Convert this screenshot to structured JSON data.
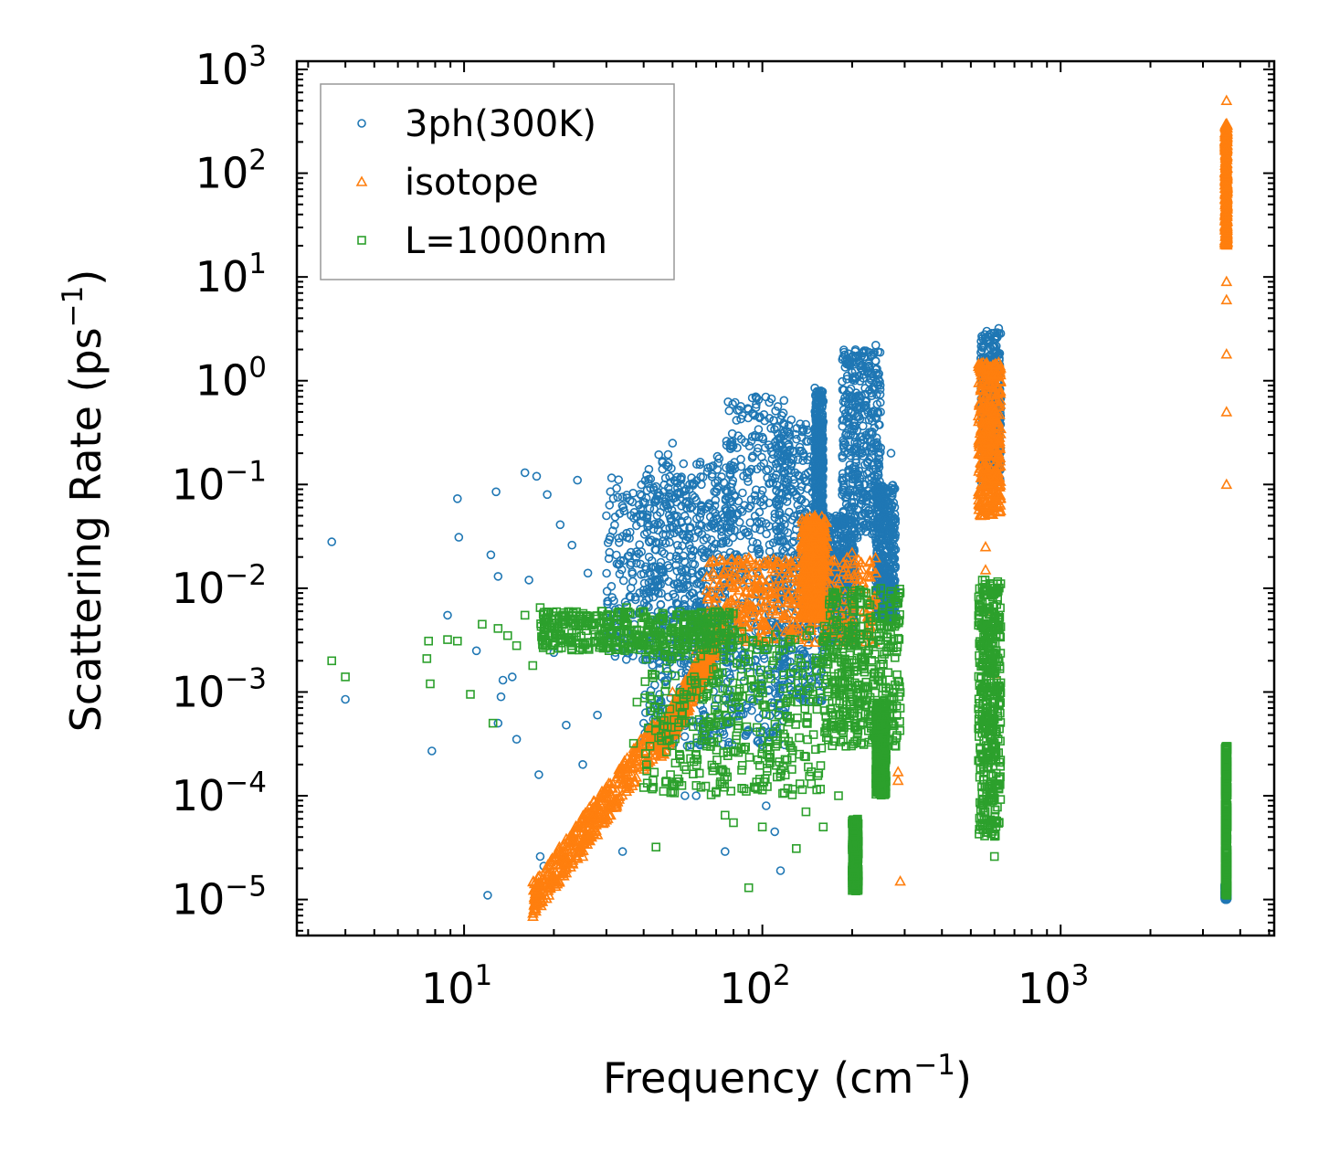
{
  "chart_data": {
    "type": "scatter",
    "title": "",
    "xlabel": "Frequency (cm",
    "xlabel_sup": "−1",
    "xlabel_end": ")",
    "ylabel": "Scattering Rate (ps",
    "ylabel_sup": "−1",
    "ylabel_end": ")",
    "xscale": "log",
    "yscale": "log",
    "xlim": [
      2.75,
      5200
    ],
    "ylim": [
      4.5e-06,
      1200
    ],
    "legend_position": "top-left",
    "x_ticks": [
      {
        "value": 10,
        "base": "10",
        "exp": "1"
      },
      {
        "value": 100,
        "base": "10",
        "exp": "2"
      },
      {
        "value": 1000,
        "base": "10",
        "exp": "3"
      }
    ],
    "y_ticks": [
      {
        "value": 1e-05,
        "base": "10",
        "exp": "−5"
      },
      {
        "value": 0.0001,
        "base": "10",
        "exp": "−4"
      },
      {
        "value": 0.001,
        "base": "10",
        "exp": "−3"
      },
      {
        "value": 0.01,
        "base": "10",
        "exp": "−2"
      },
      {
        "value": 0.1,
        "base": "10",
        "exp": "−1"
      },
      {
        "value": 1,
        "base": "10",
        "exp": "0"
      },
      {
        "value": 10,
        "base": "10",
        "exp": "1"
      },
      {
        "value": 100,
        "base": "10",
        "exp": "2"
      },
      {
        "value": 1000,
        "base": "10",
        "exp": "3"
      }
    ],
    "series": [
      {
        "name": "3ph(300K)",
        "marker": "circle",
        "color": "#1f77b4",
        "points": [
          [
            3.6,
            0.028
          ],
          [
            4.0,
            0.00085
          ],
          [
            7.8,
            0.00027
          ],
          [
            8.8,
            0.0055
          ],
          [
            9.5,
            0.073
          ],
          [
            9.6,
            0.031
          ],
          [
            11.0,
            0.0025
          ],
          [
            12.0,
            1.1e-05
          ],
          [
            12.3,
            0.021
          ],
          [
            12.8,
            0.085
          ],
          [
            13.0,
            0.013
          ],
          [
            13.0,
            0.0005
          ],
          [
            13.3,
            0.0009
          ],
          [
            13.5,
            0.0013
          ],
          [
            14.5,
            0.0014
          ],
          [
            15.0,
            0.00035
          ],
          [
            16.0,
            0.13
          ],
          [
            16.5,
            0.012
          ],
          [
            17.5,
            0.12
          ],
          [
            17.8,
            0.00016
          ],
          [
            18.0,
            2.6e-05
          ],
          [
            18.5,
            2.1e-05
          ],
          [
            19.0,
            0.08
          ],
          [
            20.0,
            0.0024
          ],
          [
            21.0,
            0.041
          ],
          [
            22.0,
            0.00048
          ],
          [
            23.0,
            0.026
          ],
          [
            24.0,
            0.11
          ],
          [
            25.0,
            0.0002
          ],
          [
            26.0,
            0.014
          ],
          [
            28.0,
            0.0006
          ],
          [
            30.0,
            0.05
          ],
          [
            32.0,
            0.0045
          ],
          [
            34.0,
            2.9e-05
          ],
          [
            36.0,
            0.07
          ],
          [
            40.0,
            0.0005
          ],
          [
            45.0,
            0.002
          ],
          [
            50.0,
            0.25
          ],
          [
            55.0,
            0.0001
          ],
          [
            60.0,
            0.0001
          ],
          [
            75.0,
            2.9e-05
          ],
          [
            80.0,
            0.15
          ],
          [
            95.0,
            0.7
          ],
          [
            103.0,
            8e-05
          ],
          [
            110.0,
            4.5e-05
          ],
          [
            115.0,
            1.9e-05
          ],
          [
            125.0,
            0.42
          ],
          [
            150.0,
            0.85
          ],
          [
            200.0,
            1.5
          ],
          [
            240.0,
            2.2
          ],
          [
            270.0,
            0.2
          ],
          [
            560.0,
            0.8
          ],
          [
            620.0,
            3.2
          ],
          [
            3600.0,
            1e-05
          ]
        ],
        "clusters": [
          {
            "x": [
              30,
              75
            ],
            "y": [
              0.002,
              0.12
            ]
          },
          {
            "x": [
              40,
              80
            ],
            "y": [
              0.0003,
              0.2
            ]
          },
          {
            "x": [
              75,
              120
            ],
            "y": [
              0.0003,
              0.7
            ]
          },
          {
            "x": [
              110,
              160
            ],
            "y": [
              0.0008,
              0.4
            ]
          },
          {
            "x": [
              150,
              160
            ],
            "y": [
              0.02,
              0.8
            ]
          },
          {
            "x": [
              160,
              205
            ],
            "y": [
              0.003,
              0.05
            ]
          },
          {
            "x": [
              185,
              250
            ],
            "y": [
              0.03,
              2.0
            ]
          },
          {
            "x": [
              240,
              280
            ],
            "y": [
              0.005,
              0.1
            ]
          },
          {
            "x": [
              540,
              630
            ],
            "y": [
              0.1,
              3.0
            ]
          },
          {
            "x": [
              3550,
              3620
            ],
            "y": [
              1e-05,
              1.4e-05
            ]
          }
        ]
      },
      {
        "name": "isotope",
        "marker": "triangle",
        "color": "#ff7f0e",
        "points": [
          [
            17.2,
            1e-05
          ],
          [
            18.0,
            1.1e-05
          ],
          [
            20.0,
            1.4e-05
          ],
          [
            22.0,
            1.8e-05
          ],
          [
            25.0,
            2.6e-05
          ],
          [
            28.0,
            4.2e-05
          ],
          [
            31.0,
            6.5e-05
          ],
          [
            35.0,
            0.00011
          ],
          [
            40.0,
            0.00022
          ],
          [
            45.0,
            0.0005
          ],
          [
            50.0,
            0.001
          ],
          [
            60.0,
            0.0025
          ],
          [
            70.0,
            0.008
          ],
          [
            80.0,
            0.013
          ],
          [
            100.0,
            0.012
          ],
          [
            120.0,
            0.017
          ],
          [
            150.0,
            0.05
          ],
          [
            200.0,
            0.022
          ],
          [
            240.0,
            0.014
          ],
          [
            285.0,
            0.00017
          ],
          [
            285.0,
            0.00014
          ],
          [
            290.0,
            1.5e-05
          ],
          [
            540.0,
            0.05
          ],
          [
            560.0,
            0.3
          ],
          [
            600.0,
            0.5
          ],
          [
            620.0,
            1.5
          ],
          [
            3600.0,
            500
          ],
          [
            3600.0,
            250
          ],
          [
            3600.0,
            100
          ],
          [
            3600.0,
            40
          ],
          [
            3600.0,
            9
          ],
          [
            3600.0,
            6
          ],
          [
            3600.0,
            1.8
          ],
          [
            3600.0,
            0.5
          ],
          [
            3600.0,
            0.1
          ],
          [
            560.0,
            0.025
          ],
          [
            580.0,
            0.006
          ],
          [
            600.0,
            0.0015
          ],
          [
            560.0,
            0.015
          ],
          [
            620.0,
            0.004
          ]
        ],
        "clusters": [
          {
            "x": [
              17,
              45
            ],
            "y": [
              1e-05,
              0.0004
            ],
            "trend": true
          },
          {
            "x": [
              45,
              70
            ],
            "y": [
              0.0003,
              0.003
            ],
            "trend": true
          },
          {
            "x": [
              65,
              240
            ],
            "y": [
              0.003,
              0.02
            ]
          },
          {
            "x": [
              135,
              165
            ],
            "y": [
              0.005,
              0.05
            ]
          },
          {
            "x": [
              530,
              630
            ],
            "y": [
              0.05,
              1.5
            ]
          },
          {
            "x": [
              3560,
              3620
            ],
            "y": [
              20,
              300
            ]
          }
        ]
      },
      {
        "name": "L=1000nm",
        "marker": "square",
        "color": "#2ca02c",
        "points": [
          [
            3.6,
            0.002
          ],
          [
            4.0,
            0.0014
          ],
          [
            7.5,
            0.0021
          ],
          [
            7.6,
            0.0031
          ],
          [
            7.7,
            0.0012
          ],
          [
            8.8,
            0.0032
          ],
          [
            9.5,
            0.0031
          ],
          [
            10.5,
            0.00095
          ],
          [
            11.5,
            0.0045
          ],
          [
            12.5,
            0.0005
          ],
          [
            13.0,
            0.0041
          ],
          [
            14.0,
            0.0035
          ],
          [
            15.0,
            0.0028
          ],
          [
            16.0,
            0.0055
          ],
          [
            17.0,
            0.0018
          ],
          [
            18.0,
            0.0065
          ],
          [
            20.0,
            0.0042
          ],
          [
            23.0,
            0.0055
          ],
          [
            25.0,
            0.003
          ],
          [
            30.0,
            0.0045
          ],
          [
            35.0,
            0.0065
          ],
          [
            37.0,
            0.00032
          ],
          [
            38.0,
            0.0008
          ],
          [
            40.0,
            0.00012
          ],
          [
            42.0,
            0.0003
          ],
          [
            44.0,
            3.2e-05
          ],
          [
            50.0,
            0.00011
          ],
          [
            60.0,
            0.00025
          ],
          [
            70.0,
            0.00011
          ],
          [
            75.0,
            6.5e-05
          ],
          [
            80.0,
            5.5e-05
          ],
          [
            90.0,
            1.3e-05
          ],
          [
            100.0,
            5e-05
          ],
          [
            130.0,
            3.1e-05
          ],
          [
            140.0,
            7e-05
          ],
          [
            160.0,
            5e-05
          ],
          [
            170.0,
            0.00048
          ],
          [
            180.0,
            0.0001
          ],
          [
            240.0,
            0.0095
          ],
          [
            280.0,
            0.0003
          ],
          [
            290.0,
            0.0007
          ],
          [
            600.0,
            2.6e-05
          ]
        ],
        "clusters": [
          {
            "x": [
              18,
              80
            ],
            "y": [
              0.0025,
              0.006
            ]
          },
          {
            "x": [
              40,
              160
            ],
            "y": [
              0.0001,
              0.004
            ]
          },
          {
            "x": [
              160,
              290
            ],
            "y": [
              0.0003,
              0.01
            ]
          },
          {
            "x": [
              200,
              210
            ],
            "y": [
              1.2e-05,
              6e-05
            ]
          },
          {
            "x": [
              240,
              260
            ],
            "y": [
              0.0001,
              0.0008
            ]
          },
          {
            "x": [
              530,
              630
            ],
            "y": [
              4e-05,
              0.012
            ]
          },
          {
            "x": [
              3560,
              3620
            ],
            "y": [
              1.1e-05,
              0.0003
            ]
          }
        ]
      }
    ]
  }
}
